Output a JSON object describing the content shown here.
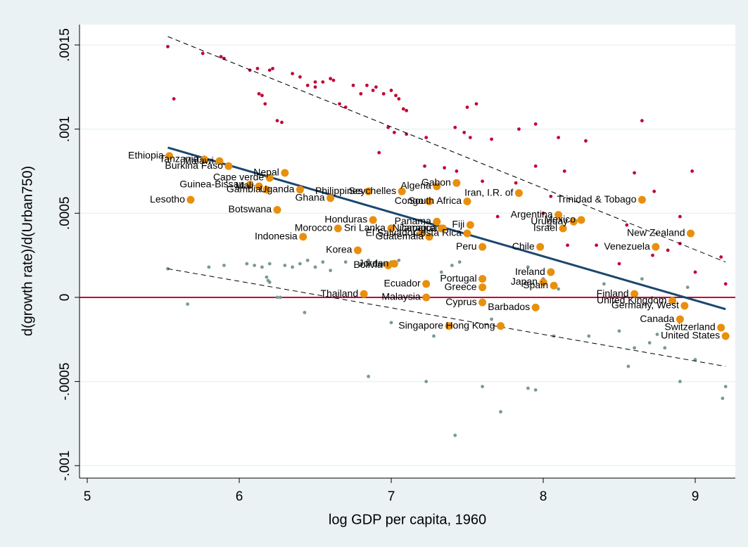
{
  "chart_data": {
    "type": "scatter",
    "x_label": "log GDP per capita, 1960",
    "y_label": "d(growth rate)/d(Urban750)",
    "xlim": [
      4.949,
      9.264
    ],
    "ylim": [
      -0.001074,
      0.001621
    ],
    "xticks": [
      5,
      6,
      7,
      8,
      9
    ],
    "yticks": [
      {
        "value": -0.001,
        "label": "-.001"
      },
      {
        "value": -0.0005,
        "label": "-.0005"
      },
      0,
      {
        "value": 0.0005,
        "label": ".0005"
      },
      {
        "value": 0.001,
        "label": ".001"
      },
      {
        "value": 0.0015,
        "label": ".0015"
      }
    ],
    "grid": true,
    "hline": {
      "value": 0,
      "color": "#c10534"
    },
    "series": [
      {
        "type": "scatter",
        "color": "#c10534",
        "size": 2.4,
        "x": [
          5.53,
          5.57,
          5.76,
          5.88,
          5.9,
          6.07,
          6.12,
          6.13,
          6.15,
          6.17,
          6.2,
          6.22,
          6.25,
          6.28,
          6.35,
          6.4,
          6.45,
          6.5,
          6.55,
          6.5,
          6.6,
          6.62,
          6.66,
          6.7,
          6.75,
          6.8,
          6.84,
          6.88,
          6.9,
          6.95,
          7.0,
          7.03,
          7.05,
          7.08,
          7.1,
          6.98,
          7.02,
          7.1,
          6.92,
          7.23,
          7.42,
          7.48,
          7.5,
          7.56,
          7.52,
          7.66,
          7.84,
          7.95,
          8.1,
          8.28,
          7.43,
          7.6,
          7.82,
          7.95,
          8.05,
          8.14,
          8.6,
          8.65,
          8.73,
          8.9,
          8.98,
          8.55,
          8.72,
          8.82,
          9.0,
          9.17,
          9.2,
          8.5,
          8.9,
          8.35,
          7.7,
          8.16,
          8.0,
          7.35,
          7.22
        ],
        "values": [
          0.00149,
          0.00118,
          0.00145,
          0.00143,
          0.00142,
          0.00135,
          0.00136,
          0.00121,
          0.0012,
          0.00115,
          0.00135,
          0.00136,
          0.00105,
          0.00104,
          0.00133,
          0.00131,
          0.00126,
          0.00128,
          0.00128,
          0.00125,
          0.0013,
          0.00129,
          0.00115,
          0.00113,
          0.00126,
          0.00121,
          0.00126,
          0.00123,
          0.00125,
          0.00121,
          0.00123,
          0.0012,
          0.00118,
          0.00112,
          0.00111,
          0.00101,
          0.00098,
          0.00097,
          0.00086,
          0.00095,
          0.00101,
          0.00098,
          0.00113,
          0.00115,
          0.00095,
          0.00094,
          0.001,
          0.00103,
          0.00095,
          0.00093,
          0.00075,
          0.00069,
          0.00068,
          0.00078,
          0.0006,
          0.00075,
          0.00074,
          0.00105,
          0.00063,
          0.00048,
          0.00075,
          0.00043,
          0.00025,
          0.00028,
          0.00015,
          0.00024,
          8e-05,
          0.0002,
          0.00032,
          0.00031,
          0.00048,
          0.00031,
          0.0005,
          0.00077,
          0.00078
        ]
      },
      {
        "type": "scatter",
        "color": "#7a9a8f",
        "size": 2.4,
        "x": [
          5.53,
          5.66,
          5.8,
          5.9,
          6.05,
          6.1,
          6.15,
          6.18,
          6.19,
          6.2,
          6.2,
          6.25,
          6.27,
          6.3,
          6.35,
          6.4,
          6.43,
          6.45,
          6.5,
          6.55,
          6.6,
          6.7,
          6.8,
          6.85,
          6.9,
          6.95,
          7.0,
          7.05,
          7.0,
          6.85,
          7.23,
          7.28,
          7.33,
          7.4,
          7.45,
          7.42,
          7.6,
          7.72,
          7.66,
          7.6,
          7.9,
          7.95,
          8.07,
          8.3,
          8.5,
          8.56,
          8.6,
          8.7,
          8.75,
          8.8,
          8.9,
          9.0,
          9.18,
          9.2,
          8.65,
          8.95,
          7.9,
          8.0,
          8.1,
          8.4
        ],
        "values": [
          0.00017,
          -4e-05,
          0.00018,
          0.00019,
          0.0002,
          0.00019,
          0.00018,
          0.00012,
          0.0001,
          9e-05,
          0.0002,
          0.0,
          0.0,
          0.00019,
          0.00018,
          0.0002,
          -9e-05,
          0.00022,
          0.00018,
          0.00021,
          0.00016,
          0.00021,
          0.0002,
          0.00022,
          0.00021,
          0.0002,
          0.00021,
          0.00022,
          -0.00015,
          -0.00047,
          -0.0005,
          -0.00023,
          0.00015,
          0.00019,
          0.00021,
          -0.00082,
          -0.00053,
          -0.00068,
          -0.00013,
          0.00012,
          -0.00054,
          -0.00055,
          -0.00023,
          -0.00023,
          -0.0002,
          -0.00041,
          -0.0003,
          -0.00027,
          -0.00022,
          -0.0003,
          -0.0005,
          -0.00037,
          -0.0006,
          -0.00053,
          0.00011,
          6e-05,
          0.00018,
          0.00011,
          5e-05,
          8e-05
        ]
      },
      {
        "type": "scatter",
        "color": "#e8900e",
        "size": 5.5,
        "labels": [
          "Ethiopia",
          "Tanzania",
          "Malawi",
          "Burkina Faso",
          "Lesotho",
          "Guinea-Bissau",
          "Mali",
          "Gambia",
          "Uganda",
          "Cape verde",
          "Nepal",
          "Botswana",
          "Ghana",
          "Philippines",
          "Seychelles",
          "Algeria",
          "Gabon",
          "Congo",
          "Iran, I.R. of",
          "South Africa",
          "Trinidad & Tobago",
          "Argentina",
          "Mexico",
          "Uruguay",
          "Israel",
          "Fiji",
          "New Zealand",
          "Venezuela",
          "Chile",
          "Costa Rica",
          "Peru",
          "Honduras",
          "Panama",
          "Nicaragua",
          "Sri Lanka",
          "El Salvador",
          "Jamaica",
          "Guatemala",
          "Morocco",
          "Indonesia",
          "Korea",
          "Jordan",
          "Bolivia",
          "Ireland",
          "Portugal",
          "Japan",
          "Spain",
          "Ecuador",
          "Greece",
          "Thailand",
          "Malaysia",
          "Cyprus",
          "Barbados",
          "Singapore",
          "Hong Kong",
          "Canada",
          "Switzerland",
          "United States",
          "Germany, West",
          "Finland",
          "United Kingdom"
        ],
        "x": [
          5.54,
          5.77,
          5.87,
          5.93,
          5.68,
          6.07,
          6.13,
          6.18,
          6.4,
          6.2,
          6.3,
          6.25,
          6.6,
          6.85,
          7.07,
          7.3,
          7.43,
          7.25,
          7.84,
          7.5,
          8.65,
          8.1,
          8.25,
          8.2,
          8.13,
          7.52,
          8.97,
          8.74,
          7.98,
          7.5,
          7.6,
          6.88,
          7.3,
          7.34,
          7.0,
          7.2,
          7.33,
          7.25,
          6.65,
          6.42,
          6.78,
          7.02,
          6.98,
          8.05,
          7.6,
          8.0,
          8.07,
          7.23,
          7.6,
          6.82,
          7.23,
          7.6,
          7.95,
          7.38,
          7.72,
          8.9,
          9.17,
          9.2,
          8.93,
          8.6,
          8.85
        ],
        "values": [
          0.00084,
          0.00082,
          0.00081,
          0.00078,
          0.00058,
          0.00067,
          0.00066,
          0.00064,
          0.00064,
          0.00071,
          0.00074,
          0.00052,
          0.00059,
          0.00063,
          0.00063,
          0.00066,
          0.00068,
          0.00057,
          0.00062,
          0.00057,
          0.00058,
          0.00049,
          0.00046,
          0.00045,
          0.00041,
          0.00043,
          0.00038,
          0.0003,
          0.0003,
          0.00038,
          0.0003,
          0.00046,
          0.00045,
          0.00041,
          0.00041,
          0.00038,
          0.00041,
          0.00036,
          0.00041,
          0.00036,
          0.00028,
          0.0002,
          0.00019,
          0.00015,
          0.00011,
          9e-05,
          7e-05,
          8e-05,
          6e-05,
          2e-05,
          0.0,
          -3e-05,
          -6e-05,
          -0.00017,
          -0.00017,
          -0.00013,
          -0.00018,
          -0.00023,
          -5e-05,
          2e-05,
          -2e-05
        ]
      },
      {
        "type": "line",
        "color": "#1a476f",
        "width": 3,
        "dash": false,
        "x": [
          5.53,
          9.2
        ],
        "values": [
          0.00089,
          -7e-05
        ]
      },
      {
        "type": "line",
        "color": "#000000",
        "width": 1,
        "dash": true,
        "x": [
          5.53,
          9.2
        ],
        "values": [
          0.00155,
          0.00021
        ]
      },
      {
        "type": "line",
        "color": "#000000",
        "width": 1,
        "dash": true,
        "x": [
          5.53,
          9.2
        ],
        "values": [
          0.00017,
          -0.00041
        ]
      }
    ]
  }
}
